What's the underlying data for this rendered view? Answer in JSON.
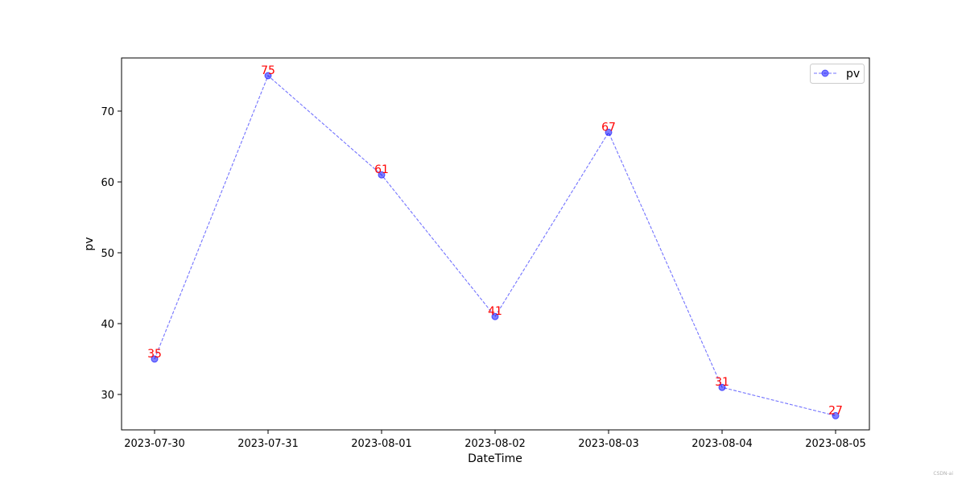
{
  "chart_data": {
    "type": "line",
    "xlabel": "DateTime",
    "ylabel": "pv",
    "categories": [
      "2023-07-30",
      "2023-07-31",
      "2023-08-01",
      "2023-08-02",
      "2023-08-03",
      "2023-08-04",
      "2023-08-05"
    ],
    "series": [
      {
        "name": "pv",
        "values": [
          35,
          75,
          61,
          41,
          67,
          31,
          27
        ],
        "color": "#0000ff",
        "marker": "circle",
        "linestyle": "dashed"
      }
    ],
    "data_label_color": "#ff0000",
    "ylim": [
      25,
      77.5
    ],
    "yticks": [
      30,
      40,
      50,
      60,
      70
    ],
    "grid": false,
    "legend_position": "top-right"
  },
  "watermark": "CSDN-ai"
}
